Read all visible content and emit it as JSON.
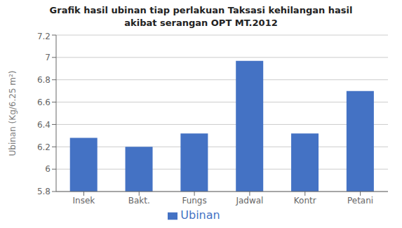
{
  "chart_data": {
    "type": "bar",
    "title": "Grafik hasil ubinan tiap perlakuan Taksasi kehilangan hasil\nakibat serangan OPT MT.2012",
    "categories": [
      "Insek",
      "Bakt.",
      "Fungs",
      "Jadwal",
      "Kontr",
      "Petani"
    ],
    "series": [
      {
        "name": "Ubinan",
        "color": "#4472C4",
        "values": [
          6.28,
          6.2,
          6.32,
          6.97,
          6.32,
          6.7
        ]
      }
    ],
    "ylabel": "Ubinan (Kg/6.25 m²)",
    "ylim": [
      5.8,
      7.2
    ],
    "yticks": [
      5.8,
      6,
      6.2,
      6.4,
      6.6,
      6.8,
      7,
      7.2
    ],
    "grid": true,
    "legend": "bottom"
  }
}
